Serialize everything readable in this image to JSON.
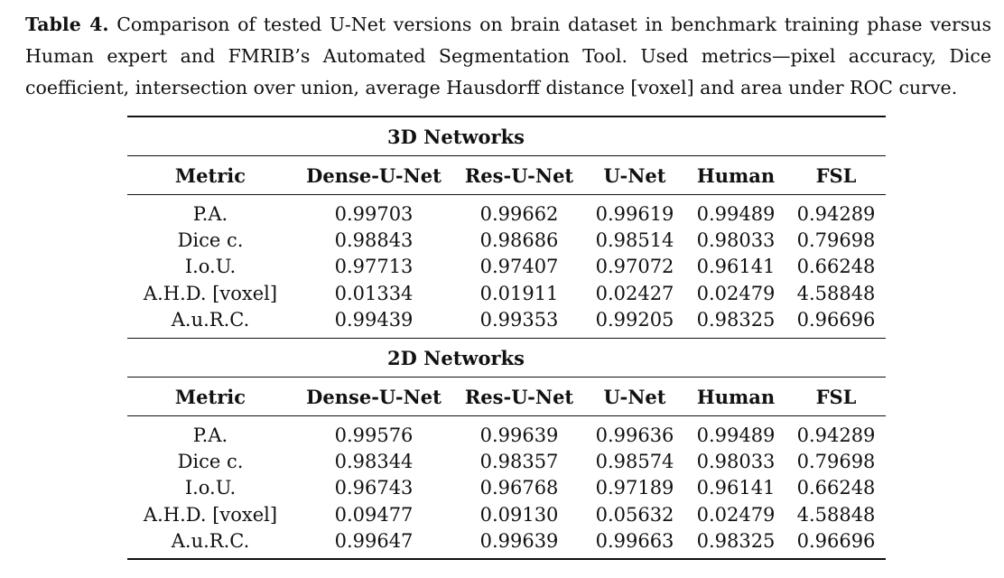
{
  "caption": {
    "label": "Table 4.",
    "text": "Comparison of tested U-Net versions on brain dataset in benchmark training phase versus Human expert and FMRIB’s Automated Segmentation Tool. Used metrics—pixel accuracy, Dice coefficient, intersection over union, average Hausdorff distance [voxel] and area under ROC curve."
  },
  "table": {
    "columns": [
      "Metric",
      "Dense-U-Net",
      "Res-U-Net",
      "U-Net",
      "Human",
      "FSL"
    ],
    "sections": [
      {
        "title": "3D Networks",
        "rows": [
          [
            "P.A.",
            "0.99703",
            "0.99662",
            "0.99619",
            "0.99489",
            "0.94289"
          ],
          [
            "Dice c.",
            "0.98843",
            "0.98686",
            "0.98514",
            "0.98033",
            "0.79698"
          ],
          [
            "I.o.U.",
            "0.97713",
            "0.97407",
            "0.97072",
            "0.96141",
            "0.66248"
          ],
          [
            "A.H.D. [voxel]",
            "0.01334",
            "0.01911",
            "0.02427",
            "0.02479",
            "4.58848"
          ],
          [
            "A.u.R.C.",
            "0.99439",
            "0.99353",
            "0.99205",
            "0.98325",
            "0.96696"
          ]
        ]
      },
      {
        "title": "2D Networks",
        "rows": [
          [
            "P.A.",
            "0.99576",
            "0.99639",
            "0.99636",
            "0.99489",
            "0.94289"
          ],
          [
            "Dice c.",
            "0.98344",
            "0.98357",
            "0.98574",
            "0.98033",
            "0.79698"
          ],
          [
            "I.o.U.",
            "0.96743",
            "0.96768",
            "0.97189",
            "0.96141",
            "0.66248"
          ],
          [
            "A.H.D. [voxel]",
            "0.09477",
            "0.09130",
            "0.05632",
            "0.02479",
            "4.58848"
          ],
          [
            "A.u.R.C.",
            "0.99647",
            "0.99639",
            "0.99663",
            "0.98325",
            "0.96696"
          ]
        ]
      }
    ]
  }
}
